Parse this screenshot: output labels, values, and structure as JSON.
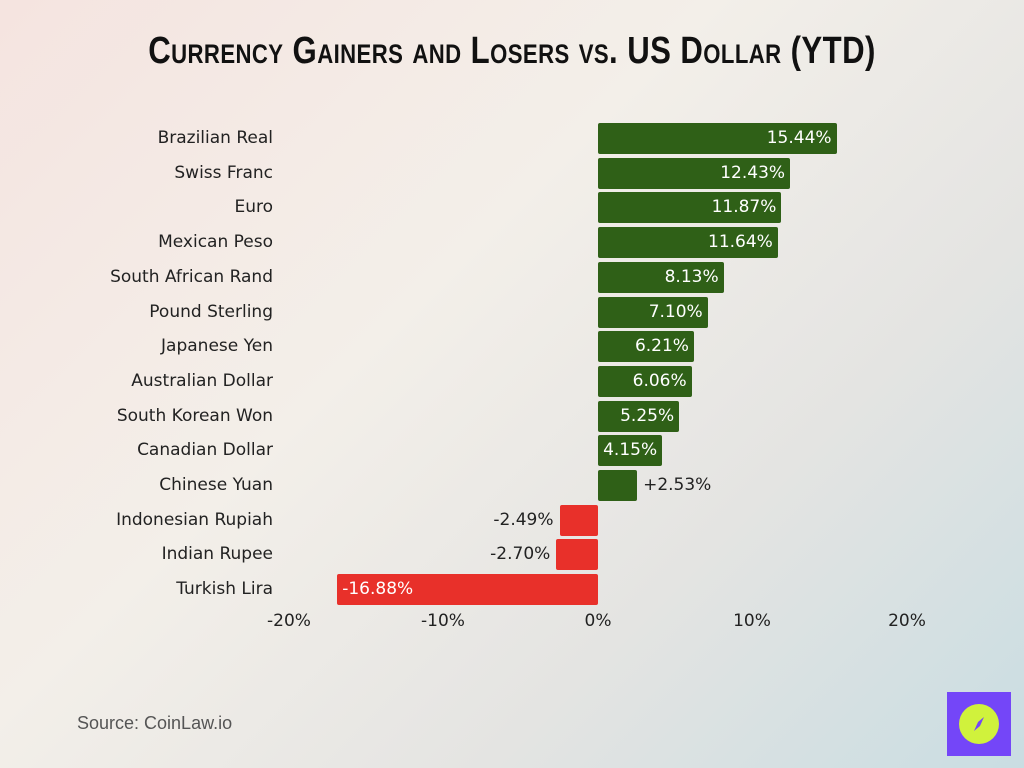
{
  "title": "Currency Gainers and Losers vs. US Dollar (YTD)",
  "source": "Source: CoinLaw.io",
  "colors": {
    "positive": "#2f6017",
    "negative": "#e8302a",
    "logo_bg": "#7446f8",
    "logo_fg": "#d0f23c"
  },
  "logo": {
    "icon": "compass-icon"
  },
  "axis": {
    "ticks": [
      "-20%",
      "-10%",
      "0%",
      "10%",
      "20%"
    ]
  },
  "rows": [
    {
      "label": "Brazilian Real",
      "value": 15.44,
      "text": "15.44%"
    },
    {
      "label": "Swiss Franc",
      "value": 12.43,
      "text": "12.43%"
    },
    {
      "label": "Euro",
      "value": 11.87,
      "text": "11.87%"
    },
    {
      "label": "Mexican Peso",
      "value": 11.64,
      "text": "11.64%"
    },
    {
      "label": "South African Rand",
      "value": 8.13,
      "text": "8.13%"
    },
    {
      "label": "Pound Sterling",
      "value": 7.1,
      "text": "7.10%"
    },
    {
      "label": "Japanese Yen",
      "value": 6.21,
      "text": "6.21%"
    },
    {
      "label": "Australian Dollar",
      "value": 6.06,
      "text": "6.06%"
    },
    {
      "label": "South Korean Won",
      "value": 5.25,
      "text": "5.25%"
    },
    {
      "label": "Canadian Dollar",
      "value": 4.15,
      "text": "4.15%"
    },
    {
      "label": "Chinese Yuan",
      "value": 2.53,
      "text": "+2.53%"
    },
    {
      "label": "Indonesian Rupiah",
      "value": -2.49,
      "text": "-2.49%"
    },
    {
      "label": "Indian Rupee",
      "value": -2.7,
      "text": "-2.70%"
    },
    {
      "label": "Turkish Lira",
      "value": -16.88,
      "text": "-16.88%"
    }
  ],
  "chart_data": {
    "type": "bar",
    "orientation": "horizontal",
    "title": "Currency Gainers and Losers vs. US Dollar (YTD)",
    "categories": [
      "Brazilian Real",
      "Swiss Franc",
      "Euro",
      "Mexican Peso",
      "South African Rand",
      "Pound Sterling",
      "Japanese Yen",
      "Australian Dollar",
      "South Korean Won",
      "Canadian Dollar",
      "Chinese Yuan",
      "Indonesian Rupiah",
      "Indian Rupee",
      "Turkish Lira"
    ],
    "values": [
      15.44,
      12.43,
      11.87,
      11.64,
      8.13,
      7.1,
      6.21,
      6.06,
      5.25,
      4.15,
      2.53,
      -2.49,
      -2.7,
      -16.88
    ],
    "xlabel": "",
    "ylabel": "",
    "xlim": [
      -20,
      20
    ],
    "xticks": [
      "-20%",
      "-10%",
      "0%",
      "10%",
      "20%"
    ],
    "grid": false,
    "legend": null,
    "annotations": [
      "Source: CoinLaw.io"
    ]
  }
}
